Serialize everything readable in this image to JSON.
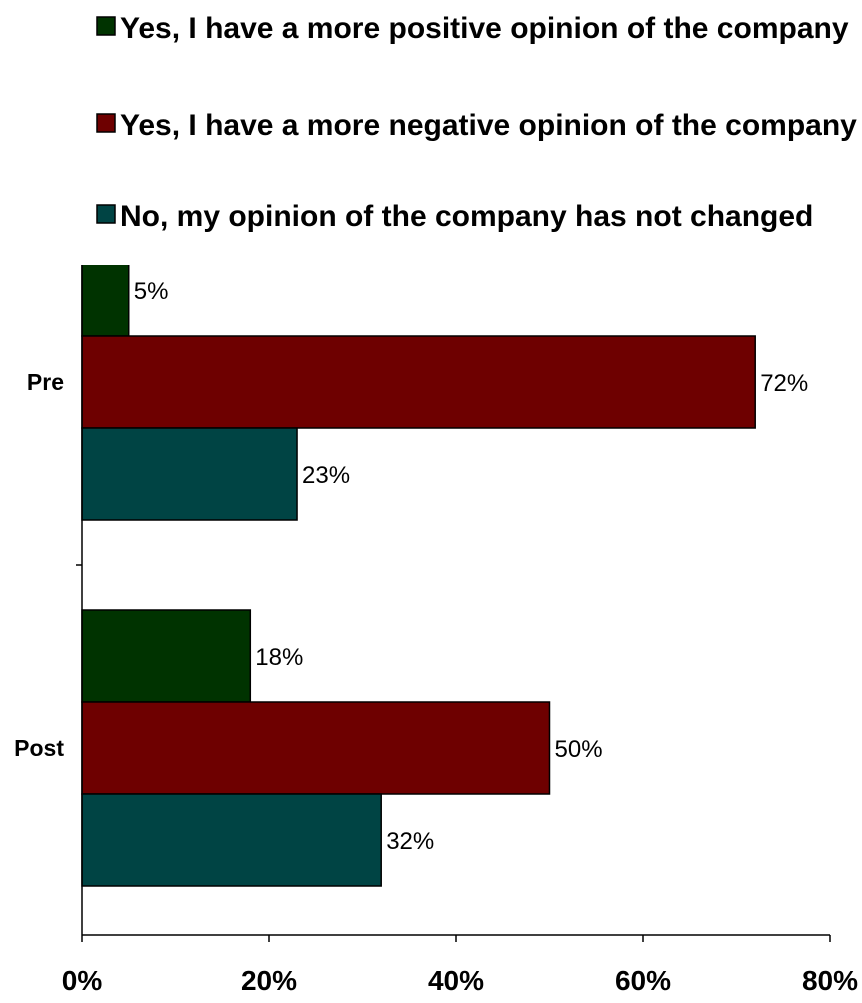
{
  "chart_data": {
    "type": "bar",
    "orientation": "horizontal",
    "categories": [
      "Pre",
      "Post"
    ],
    "series": [
      {
        "name": "Yes, I have a more positive opinion of the company",
        "color": "#003300",
        "values": [
          5,
          18
        ],
        "labels": [
          "5%",
          "18%"
        ]
      },
      {
        "name": "Yes, I have a more negative opinion of the company",
        "color": "#6e0000",
        "values": [
          72,
          50
        ],
        "labels": [
          "72%",
          "50%"
        ]
      },
      {
        "name": "No, my opinion of the company has not changed",
        "color": "#004444",
        "values": [
          23,
          32
        ],
        "labels": [
          "23%",
          "32%"
        ]
      }
    ],
    "xlim": [
      0,
      80
    ],
    "xticks": [
      0,
      20,
      40,
      60,
      80
    ],
    "xtick_labels": [
      "0%",
      "20%",
      "40%",
      "60%",
      "80%"
    ],
    "legend_position": "top",
    "grid": false,
    "title": "",
    "xlabel": "",
    "ylabel": ""
  }
}
